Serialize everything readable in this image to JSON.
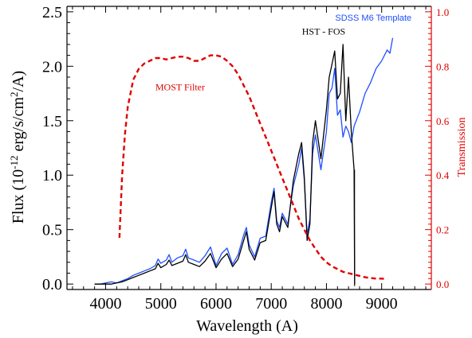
{
  "chart_data": {
    "type": "line",
    "xlabel": "Wavelength (A)",
    "ylabel_left": "Flux (10<sup>-12</sup> erg/s/cm<sup>2</sup>/A)",
    "ylabel_left_parts": [
      "Flux (10",
      "-12",
      " erg/s/cm",
      "2",
      "/A)"
    ],
    "ylabel_right": "Transmission",
    "xlim": [
      3300,
      9900
    ],
    "ylim_left": [
      -0.05,
      2.55
    ],
    "ylim_right": [
      -0.02,
      1.02
    ],
    "x_ticks": [
      4000,
      5000,
      6000,
      7000,
      8000,
      9000
    ],
    "x_tick_labels": [
      "4000",
      "5000",
      "6000",
      "7000",
      "8000",
      "9000"
    ],
    "y_ticks_left": [
      0.0,
      0.5,
      1.0,
      1.5,
      2.0,
      2.5
    ],
    "y_tick_labels_left": [
      "0.0",
      "0.5",
      "1.0",
      "1.5",
      "2.0",
      "2.5"
    ],
    "y_ticks_right": [
      0.0,
      0.2,
      0.4,
      0.6,
      0.8,
      1.0
    ],
    "y_tick_labels_right": [
      "0.0",
      "0.2",
      "0.4",
      "0.6",
      "0.8",
      "1.0"
    ],
    "annotations": [
      {
        "text": "MOST Filter",
        "color": "#e00000",
        "x": 5350,
        "y": 1.78,
        "axis": "left"
      },
      {
        "text": "HST - FOS",
        "color": "#000000",
        "x": 7950,
        "y": 2.29,
        "axis": "left"
      },
      {
        "text": "SDSS M6 Template",
        "color": "#1f4fff",
        "x": 8850,
        "y": 2.42,
        "axis": "left"
      }
    ],
    "series": [
      {
        "name": "SDSS M6 Template",
        "color": "#1f4fff",
        "axis": "left",
        "x": [
          3800,
          3900,
          4000,
          4100,
          4200,
          4300,
          4400,
          4500,
          4600,
          4700,
          4800,
          4900,
          4950,
          5000,
          5100,
          5150,
          5200,
          5300,
          5400,
          5450,
          5500,
          5600,
          5700,
          5800,
          5900,
          6000,
          6100,
          6200,
          6300,
          6400,
          6500,
          6550,
          6600,
          6700,
          6800,
          6900,
          7000,
          7050,
          7100,
          7150,
          7200,
          7300,
          7400,
          7500,
          7550,
          7600,
          7650,
          7700,
          7750,
          7800,
          7900,
          8000,
          8050,
          8100,
          8150,
          8200,
          8250,
          8300,
          8350,
          8400,
          8450,
          8500,
          8600,
          8700,
          8800,
          8900,
          9000,
          9100,
          9150,
          9200
        ],
        "values": [
          0.0,
          0.0,
          0.01,
          0.02,
          0.01,
          0.03,
          0.05,
          0.08,
          0.1,
          0.12,
          0.14,
          0.17,
          0.23,
          0.19,
          0.22,
          0.27,
          0.2,
          0.24,
          0.26,
          0.32,
          0.24,
          0.22,
          0.2,
          0.26,
          0.34,
          0.17,
          0.28,
          0.33,
          0.18,
          0.27,
          0.45,
          0.52,
          0.36,
          0.25,
          0.42,
          0.44,
          0.75,
          0.88,
          0.58,
          0.52,
          0.65,
          0.55,
          0.9,
          1.1,
          1.25,
          0.95,
          0.45,
          0.6,
          1.2,
          1.37,
          1.05,
          1.4,
          1.75,
          1.8,
          1.98,
          1.55,
          1.6,
          1.35,
          1.45,
          1.4,
          1.3,
          1.45,
          1.58,
          1.75,
          1.85,
          1.98,
          2.05,
          2.15,
          2.12,
          2.26
        ]
      },
      {
        "name": "HST - FOS",
        "color": "#000000",
        "axis": "left",
        "x": [
          3800,
          3900,
          4000,
          4100,
          4200,
          4300,
          4400,
          4500,
          4600,
          4700,
          4800,
          4900,
          4950,
          5000,
          5100,
          5150,
          5200,
          5300,
          5400,
          5450,
          5500,
          5600,
          5700,
          5800,
          5900,
          6000,
          6100,
          6200,
          6300,
          6400,
          6500,
          6550,
          6600,
          6700,
          6800,
          6900,
          7000,
          7050,
          7100,
          7150,
          7200,
          7300,
          7400,
          7500,
          7550,
          7600,
          7650,
          7700,
          7750,
          7800,
          7900,
          8000,
          8050,
          8100,
          8150,
          8200,
          8250,
          8300,
          8350,
          8400,
          8450,
          8500,
          8510,
          8520
        ],
        "values": [
          0.0,
          0.0,
          0.0,
          0.0,
          0.01,
          0.02,
          0.04,
          0.06,
          0.08,
          0.1,
          0.12,
          0.14,
          0.19,
          0.15,
          0.18,
          0.22,
          0.17,
          0.19,
          0.21,
          0.27,
          0.2,
          0.18,
          0.16,
          0.21,
          0.28,
          0.15,
          0.23,
          0.28,
          0.16,
          0.23,
          0.4,
          0.48,
          0.32,
          0.22,
          0.38,
          0.4,
          0.7,
          0.85,
          0.55,
          0.48,
          0.62,
          0.52,
          0.95,
          1.2,
          1.3,
          0.98,
          0.4,
          0.55,
          1.3,
          1.5,
          1.15,
          1.6,
          1.9,
          2.02,
          2.14,
          1.7,
          1.75,
          2.2,
          1.5,
          1.9,
          1.4,
          1.05,
          0.0,
          0.0
        ]
      },
      {
        "name": "MOST Filter",
        "color": "#e00000",
        "axis": "right",
        "dashed": true,
        "x": [
          4250,
          4300,
          4350,
          4400,
          4500,
          4600,
          4700,
          4800,
          4900,
          5000,
          5100,
          5200,
          5300,
          5400,
          5500,
          5600,
          5700,
          5800,
          5900,
          6000,
          6100,
          6200,
          6300,
          6400,
          6500,
          6600,
          6700,
          6800,
          6900,
          7000,
          7100,
          7200,
          7300,
          7400,
          7500,
          7600,
          7700,
          7800,
          7900,
          8000,
          8100,
          8200,
          8300,
          8400,
          8500,
          8600,
          8700,
          8800,
          8900,
          9000,
          9100
        ],
        "values": [
          0.17,
          0.4,
          0.55,
          0.65,
          0.75,
          0.79,
          0.81,
          0.82,
          0.83,
          0.83,
          0.825,
          0.83,
          0.835,
          0.835,
          0.83,
          0.82,
          0.82,
          0.83,
          0.84,
          0.84,
          0.835,
          0.82,
          0.8,
          0.77,
          0.73,
          0.69,
          0.64,
          0.59,
          0.54,
          0.49,
          0.44,
          0.39,
          0.34,
          0.29,
          0.24,
          0.2,
          0.16,
          0.13,
          0.1,
          0.08,
          0.065,
          0.055,
          0.045,
          0.04,
          0.035,
          0.03,
          0.025,
          0.022,
          0.02,
          0.02,
          0.018
        ]
      }
    ]
  }
}
